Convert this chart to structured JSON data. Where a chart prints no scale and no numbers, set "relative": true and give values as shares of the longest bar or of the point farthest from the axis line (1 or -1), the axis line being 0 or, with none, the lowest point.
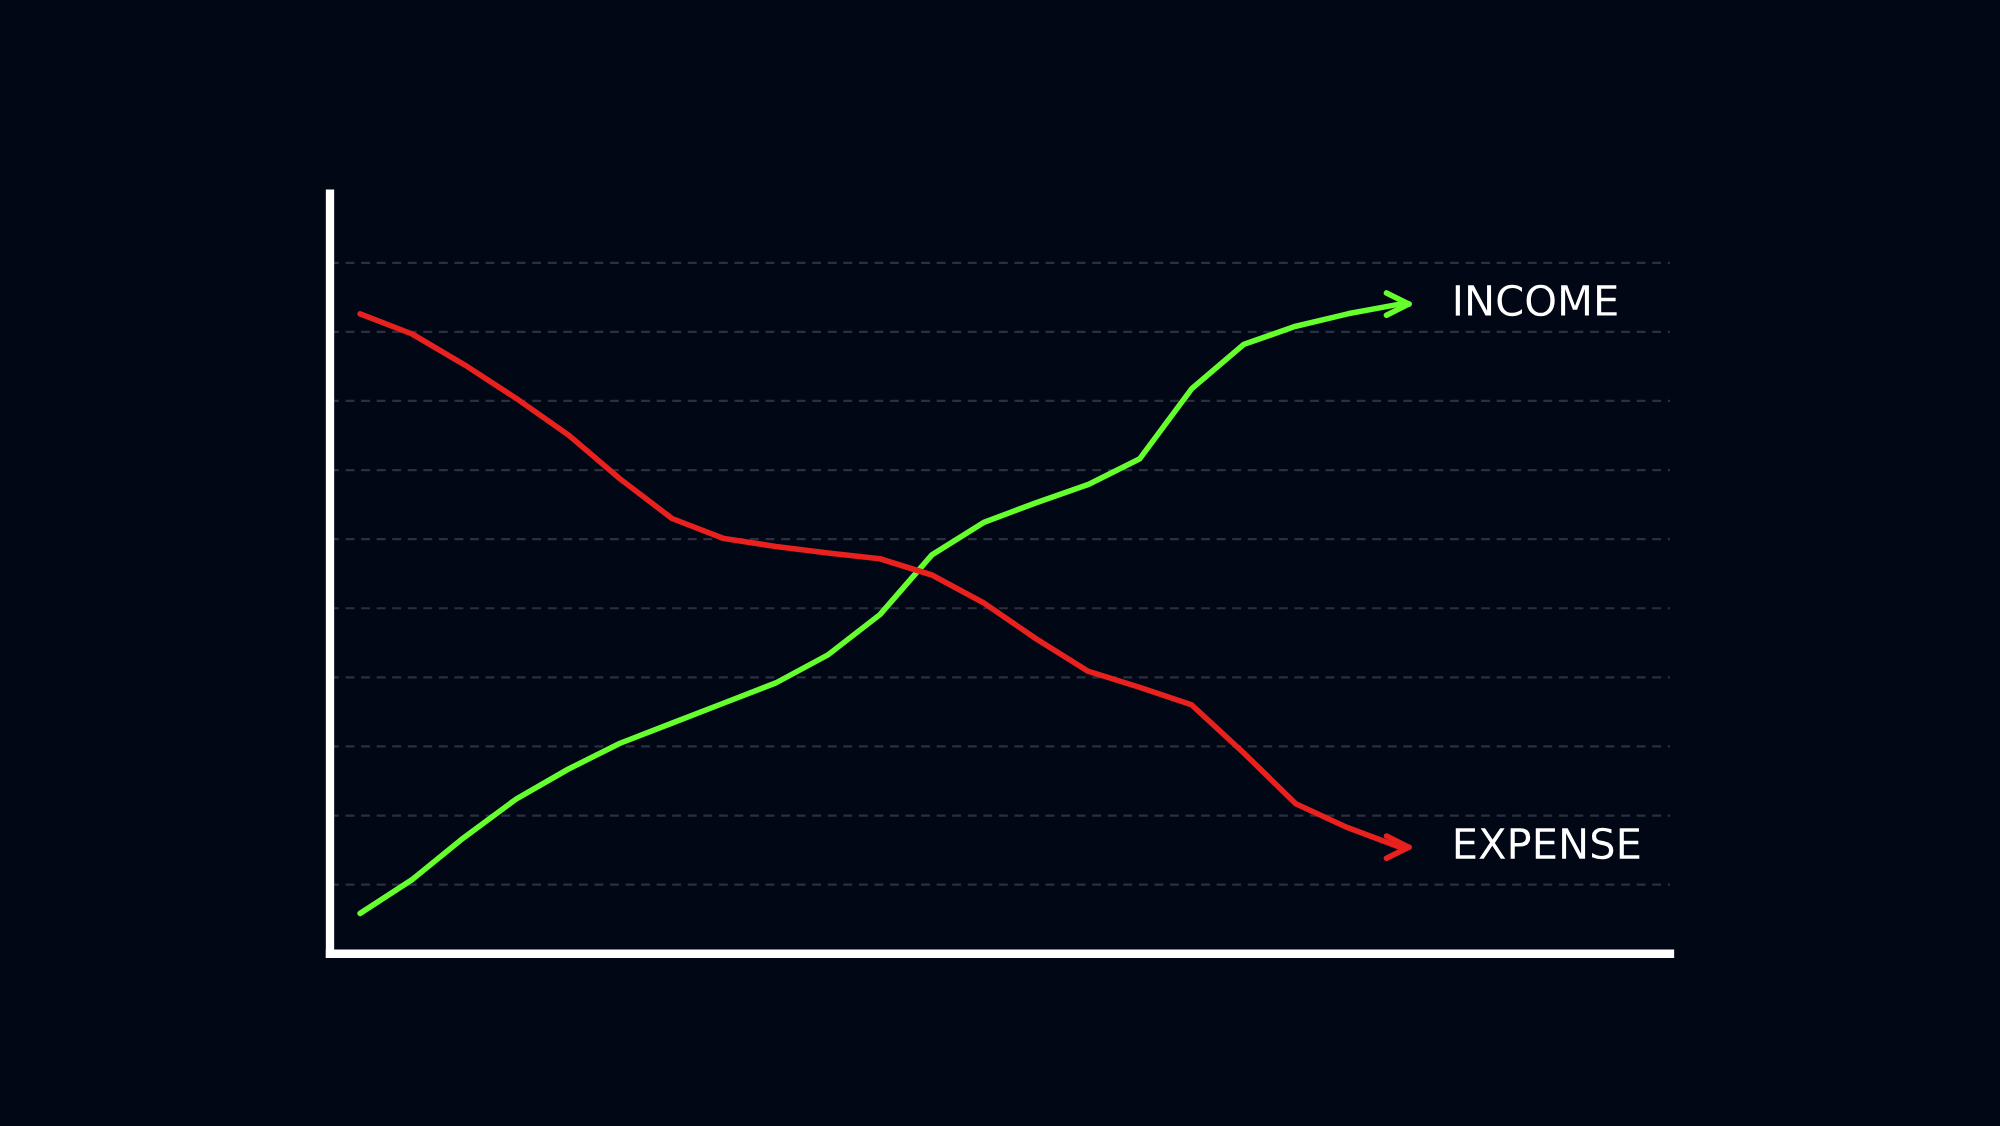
{
  "chart_data": {
    "type": "line",
    "relative": true,
    "grid": "y",
    "legend": "right",
    "line_style": "solid",
    "marker": "none",
    "categories": [
      null,
      null,
      null,
      null,
      null,
      null,
      null,
      null,
      null,
      null,
      null,
      null,
      null,
      null,
      null,
      null,
      null,
      null,
      null,
      null,
      null
    ],
    "series": [
      {
        "name": "INCOME",
        "color": "#66ff2e",
        "values": [
          0.062,
          0.114,
          0.179,
          0.238,
          0.284,
          0.324,
          0.355,
          0.386,
          0.417,
          0.46,
          0.522,
          0.614,
          0.664,
          0.694,
          0.722,
          0.762,
          0.87,
          0.938,
          0.966,
          0.985,
          1
        ]
      },
      {
        "name": "EXPENSE",
        "color": "#e8201e",
        "values": [
          0.985,
          0.954,
          0.907,
          0.855,
          0.799,
          0.731,
          0.67,
          0.639,
          0.627,
          0.617,
          0.608,
          0.583,
          0.54,
          0.485,
          0.435,
          0.41,
          0.383,
          0.309,
          0.231,
          0.194,
          0.164
        ]
      }
    ]
  }
}
